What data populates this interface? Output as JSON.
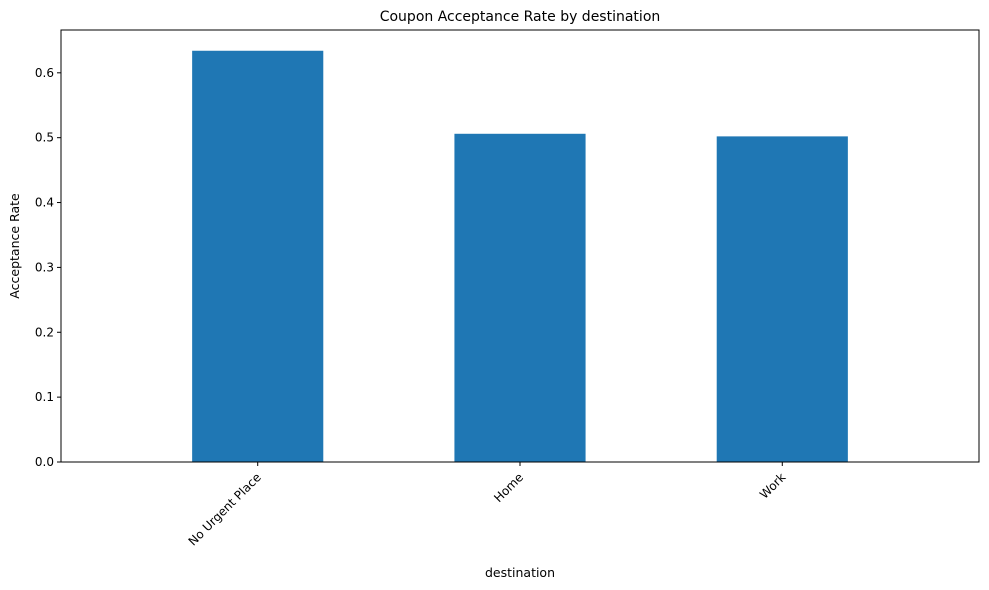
{
  "chart_data": {
    "type": "bar",
    "title": "Coupon Acceptance Rate by destination",
    "xlabel": "destination",
    "ylabel": "Acceptance Rate",
    "categories": [
      "No Urgent Place",
      "Home",
      "Work"
    ],
    "values": [
      0.634,
      0.506,
      0.502
    ],
    "ylim": [
      0,
      0.666
    ],
    "yticks": [
      "0.0",
      "0.1",
      "0.2",
      "0.3",
      "0.4",
      "0.5",
      "0.6"
    ],
    "grid": false,
    "legend": "none",
    "bar_color": "#1f77b4"
  }
}
